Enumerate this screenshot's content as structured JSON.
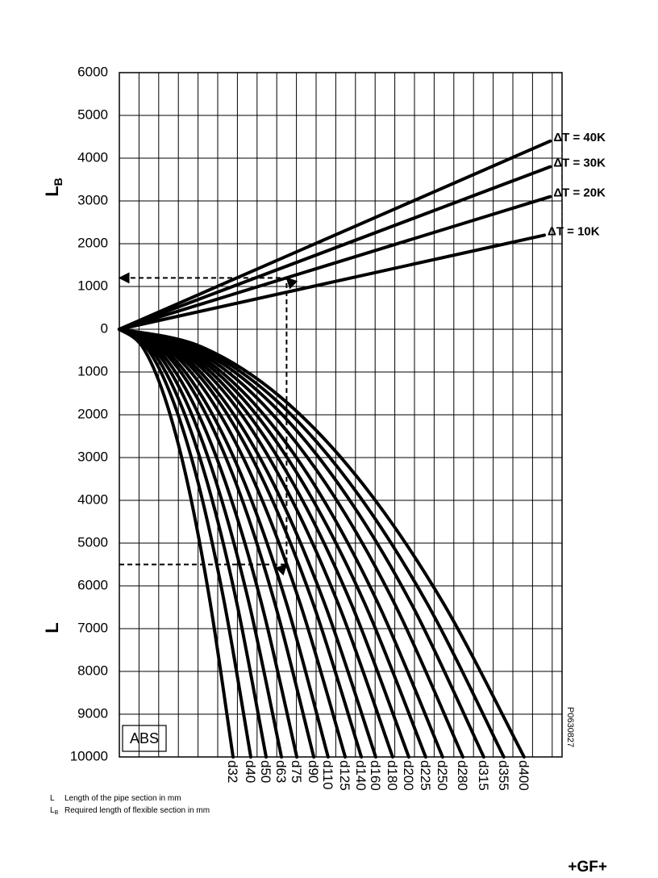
{
  "chart_data": {
    "type": "line",
    "ylabel_upper": {
      "main": "L",
      "sub": "B"
    },
    "ylabel_lower": "L",
    "material": "ABS",
    "code": "P0630827",
    "ylim": [
      -10000,
      6000
    ],
    "yticks": [
      6000,
      5000,
      4000,
      3000,
      2000,
      1000,
      0,
      {
        "value": -1000,
        "label": "1000"
      },
      {
        "value": -2000,
        "label": "2000"
      },
      {
        "value": -3000,
        "label": "3000"
      },
      {
        "value": -4000,
        "label": "4000"
      },
      {
        "value": -5000,
        "label": "5000"
      },
      {
        "value": -6000,
        "label": "6000"
      },
      {
        "value": -7000,
        "label": "7000"
      },
      {
        "value": -8000,
        "label": "8000"
      },
      {
        "value": -9000,
        "label": "9000"
      },
      {
        "value": -10000,
        "label": "10000"
      }
    ],
    "xlim": [
      0,
      22.5
    ],
    "grid": true,
    "series": [
      {
        "name": "ΔT = 40K",
        "color": "#000000",
        "x": [
          0,
          21.9
        ],
        "values": [
          0,
          4400
        ]
      },
      {
        "name": "ΔT = 30K",
        "color": "#000000",
        "x": [
          0,
          21.9
        ],
        "values": [
          0,
          3800
        ]
      },
      {
        "name": "ΔT = 20K",
        "color": "#000000",
        "x": [
          0,
          21.9
        ],
        "values": [
          0,
          3100
        ]
      },
      {
        "name": "ΔT = 10K",
        "color": "#000000",
        "x": [
          0,
          21.6
        ],
        "values": [
          0,
          2200
        ]
      },
      {
        "name": "d32",
        "color": "#000000",
        "x": [
          0,
          1.16,
          2.31,
          3.47,
          4.62,
          5.78
        ],
        "values": [
          0,
          -400,
          -1600,
          -3600,
          -6400,
          -10000
        ]
      },
      {
        "name": "d40",
        "color": "#000000",
        "x": [
          0,
          1.34,
          2.67,
          4.01,
          5.34,
          6.68
        ],
        "values": [
          0,
          -400,
          -1600,
          -3600,
          -6400,
          -10000
        ]
      },
      {
        "name": "d50",
        "color": "#000000",
        "x": [
          0,
          1.49,
          2.98,
          4.48,
          5.97,
          7.46
        ],
        "values": [
          0,
          -400,
          -1600,
          -3600,
          -6400,
          -10000
        ]
      },
      {
        "name": "d63",
        "color": "#000000",
        "x": [
          0,
          1.65,
          3.3,
          4.94,
          6.59,
          8.24
        ],
        "values": [
          0,
          -400,
          -1600,
          -3600,
          -6400,
          -10000
        ]
      },
      {
        "name": "d75",
        "color": "#000000",
        "x": [
          0,
          1.8,
          3.61,
          5.41,
          7.22,
          9.02
        ],
        "values": [
          0,
          -400,
          -1600,
          -3600,
          -6400,
          -10000
        ]
      },
      {
        "name": "d90",
        "color": "#000000",
        "x": [
          0,
          1.98,
          3.95,
          5.93,
          7.9,
          9.88
        ],
        "values": [
          0,
          -400,
          -1600,
          -3600,
          -6400,
          -10000
        ]
      },
      {
        "name": "d110",
        "color": "#000000",
        "x": [
          0,
          2.12,
          4.24,
          6.37,
          8.49,
          10.61
        ],
        "values": [
          0,
          -400,
          -1600,
          -3600,
          -6400,
          -10000
        ]
      },
      {
        "name": "d125",
        "color": "#000000",
        "x": [
          0,
          2.3,
          4.59,
          6.89,
          9.18,
          11.48
        ],
        "values": [
          0,
          -400,
          -1600,
          -3600,
          -6400,
          -10000
        ]
      },
      {
        "name": "d140",
        "color": "#000000",
        "x": [
          0,
          2.46,
          4.92,
          7.38,
          9.84,
          12.3
        ],
        "values": [
          0,
          -400,
          -1600,
          -3600,
          -6400,
          -10000
        ]
      },
      {
        "name": "d160",
        "color": "#000000",
        "x": [
          0,
          2.61,
          5.21,
          7.82,
          10.42,
          13.03
        ],
        "values": [
          0,
          -400,
          -1600,
          -3600,
          -6400,
          -10000
        ]
      },
      {
        "name": "d180",
        "color": "#000000",
        "x": [
          0,
          2.78,
          5.56,
          8.33,
          11.11,
          13.89
        ],
        "values": [
          0,
          -400,
          -1600,
          -3600,
          -6400,
          -10000
        ]
      },
      {
        "name": "d200",
        "color": "#000000",
        "x": [
          0,
          2.94,
          5.88,
          8.83,
          11.77,
          14.71
        ],
        "values": [
          0,
          -400,
          -1600,
          -3600,
          -6400,
          -10000
        ]
      },
      {
        "name": "d225",
        "color": "#000000",
        "x": [
          0,
          3.11,
          6.23,
          9.34,
          12.46,
          15.57
        ],
        "values": [
          0,
          -400,
          -1600,
          -3600,
          -6400,
          -10000
        ]
      },
      {
        "name": "d250",
        "color": "#000000",
        "x": [
          0,
          3.29,
          6.57,
          9.86,
          13.14,
          16.43
        ],
        "values": [
          0,
          -400,
          -1600,
          -3600,
          -6400,
          -10000
        ]
      },
      {
        "name": "d280",
        "color": "#000000",
        "x": [
          0,
          3.49,
          6.98,
          10.48,
          13.97,
          17.46
        ],
        "values": [
          0,
          -400,
          -1600,
          -3600,
          -6400,
          -10000
        ]
      },
      {
        "name": "d315",
        "color": "#000000",
        "x": [
          0,
          3.7,
          7.41,
          11.11,
          14.82,
          18.52
        ],
        "values": [
          0,
          -400,
          -1600,
          -3600,
          -6400,
          -10000
        ]
      },
      {
        "name": "d355",
        "color": "#000000",
        "x": [
          0,
          3.91,
          7.82,
          11.72,
          15.63,
          19.54
        ],
        "values": [
          0,
          -400,
          -1600,
          -3600,
          -6400,
          -10000
        ]
      },
      {
        "name": "d400",
        "color": "#000000",
        "x": [
          0,
          4.11,
          8.23,
          12.34,
          16.46,
          20.57
        ],
        "values": [
          0,
          -400,
          -1600,
          -3600,
          -6400,
          -10000
        ]
      }
    ],
    "example_path": {
      "x": [
        0,
        8.5,
        8.5,
        0
      ],
      "values": [
        -5500,
        -5500,
        1200,
        1200
      ]
    },
    "notes": [
      {
        "symbol": "L",
        "text": "Length of the pipe section in mm"
      },
      {
        "symbol": "L",
        "sub": "B",
        "text": "Required length of flexible section in mm"
      }
    ],
    "logo": "+GF+"
  }
}
